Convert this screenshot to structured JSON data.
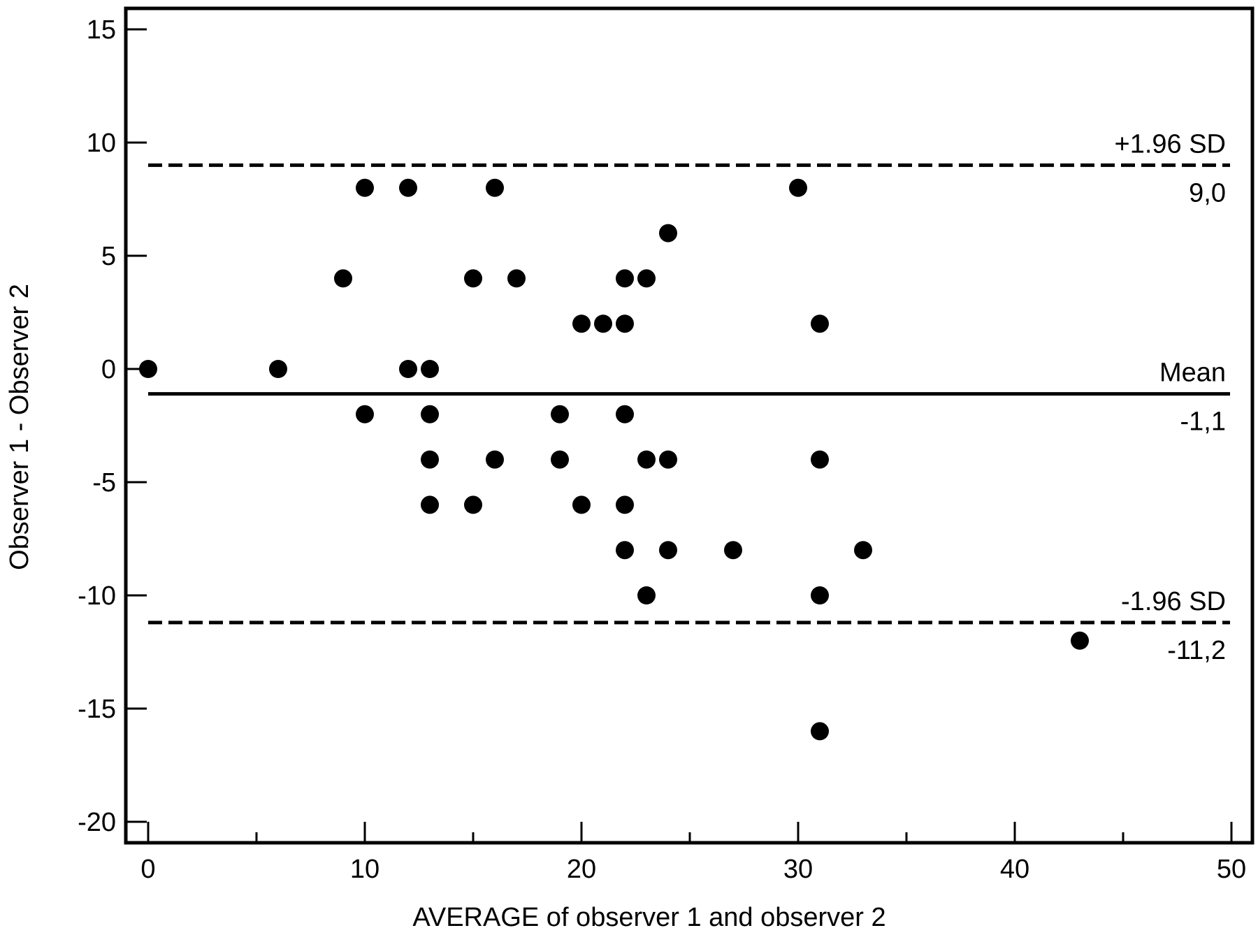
{
  "chart_data": {
    "type": "scatter",
    "xlabel": "AVERAGE of observer 1 and observer 2",
    "ylabel": "Observer 1 - Observer 2",
    "xlim": [
      -1,
      51
    ],
    "ylim": [
      -21,
      16
    ],
    "x_ticks": [
      0,
      10,
      20,
      30,
      40,
      50
    ],
    "x_tick_labels": [
      "0",
      "10",
      "20",
      "30",
      "40",
      "50"
    ],
    "x_minor_ticks": [
      5,
      15,
      25,
      35,
      45
    ],
    "y_ticks": [
      15,
      10,
      5,
      0,
      -5,
      -10,
      -15,
      -20
    ],
    "y_tick_labels": [
      "15",
      "10",
      "5",
      "0",
      "-5",
      "-10",
      "-15",
      "-20"
    ],
    "grid": false,
    "reference_lines": [
      {
        "name": "+1.96 SD",
        "value": 9.0,
        "value_label": "9,0",
        "style": "dashed"
      },
      {
        "name": "Mean",
        "value": -1.1,
        "value_label": "-1,1",
        "style": "solid"
      },
      {
        "name": "-1.96 SD",
        "value": -11.2,
        "value_label": "-11,2",
        "style": "dashed"
      }
    ],
    "points": [
      {
        "x": 0,
        "y": 0
      },
      {
        "x": 6,
        "y": 0
      },
      {
        "x": 9,
        "y": 4
      },
      {
        "x": 10,
        "y": 8
      },
      {
        "x": 10,
        "y": -2
      },
      {
        "x": 12,
        "y": 8
      },
      {
        "x": 12,
        "y": 0
      },
      {
        "x": 13,
        "y": 0
      },
      {
        "x": 13,
        "y": -2
      },
      {
        "x": 13,
        "y": -4
      },
      {
        "x": 13,
        "y": -6
      },
      {
        "x": 15,
        "y": 4
      },
      {
        "x": 15,
        "y": -6
      },
      {
        "x": 16,
        "y": 8
      },
      {
        "x": 16,
        "y": -4
      },
      {
        "x": 17,
        "y": 4
      },
      {
        "x": 19,
        "y": -2
      },
      {
        "x": 19,
        "y": -4
      },
      {
        "x": 20,
        "y": 2
      },
      {
        "x": 20,
        "y": -6
      },
      {
        "x": 21,
        "y": 2
      },
      {
        "x": 22,
        "y": 4
      },
      {
        "x": 22,
        "y": 2
      },
      {
        "x": 22,
        "y": -2
      },
      {
        "x": 22,
        "y": -6
      },
      {
        "x": 22,
        "y": -8
      },
      {
        "x": 23,
        "y": 4
      },
      {
        "x": 23,
        "y": -4
      },
      {
        "x": 23,
        "y": -10
      },
      {
        "x": 24,
        "y": 6
      },
      {
        "x": 24,
        "y": -4
      },
      {
        "x": 24,
        "y": -8
      },
      {
        "x": 27,
        "y": -8
      },
      {
        "x": 30,
        "y": 8
      },
      {
        "x": 31,
        "y": 2
      },
      {
        "x": 31,
        "y": -4
      },
      {
        "x": 31,
        "y": -10
      },
      {
        "x": 31,
        "y": -16
      },
      {
        "x": 33,
        "y": -8
      },
      {
        "x": 43,
        "y": -12
      }
    ]
  }
}
